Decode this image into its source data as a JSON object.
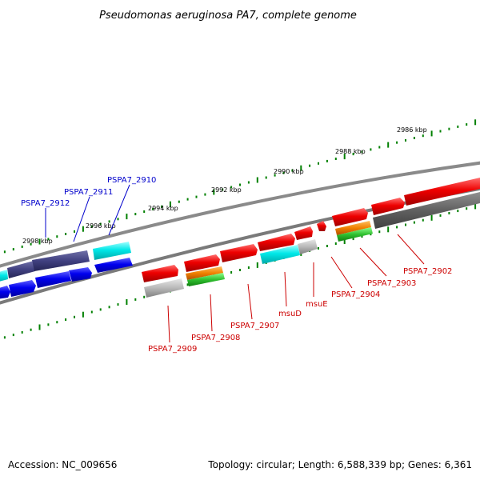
{
  "title": "Pseudomonas aeruginosa PA7, complete genome",
  "ticks": [
    {
      "label": "2986 kbp",
      "major": true
    },
    {
      "label": "2988 kbp",
      "major": true
    },
    {
      "label": "2990 kbp",
      "major": true
    },
    {
      "label": "2992 kbp",
      "major": true
    },
    {
      "label": "2994 kbp",
      "major": true
    },
    {
      "label": "2996 kbp",
      "major": true
    },
    {
      "label": "2998 kbp",
      "major": true
    }
  ],
  "gene_labels": [
    {
      "name": "PSPA7_2912",
      "color": "#0000cc"
    },
    {
      "name": "PSPA7_2911",
      "color": "#0000cc"
    },
    {
      "name": "PSPA7_2910",
      "color": "#0000cc"
    },
    {
      "name": "PSPA7_2909",
      "color": "#cc0000"
    },
    {
      "name": "PSPA7_2908",
      "color": "#cc0000"
    },
    {
      "name": "PSPA7_2907",
      "color": "#cc0000"
    },
    {
      "name": "msuD",
      "color": "#cc0000"
    },
    {
      "name": "msuE",
      "color": "#cc0000"
    },
    {
      "name": "PSPA7_2904",
      "color": "#cc0000"
    },
    {
      "name": "PSPA7_2903",
      "color": "#cc0000"
    },
    {
      "name": "PSPA7_2902",
      "color": "#cc0000"
    }
  ],
  "colors": {
    "forward_strand": "#e00000",
    "reverse_strand": "#0000e0",
    "reverse_dark": "#40407a",
    "cyan": "#00e5e5",
    "orange": "#f08000",
    "green": "#30c030",
    "grey_light": "#b5b5b5",
    "grey_dark": "#606060",
    "backbone": "#808080",
    "tick": "#008000"
  },
  "footer": {
    "accession": "Accession: NC_009656",
    "summary": "Topology: circular; Length: 6,588,339 bp; Genes: 6,361"
  }
}
